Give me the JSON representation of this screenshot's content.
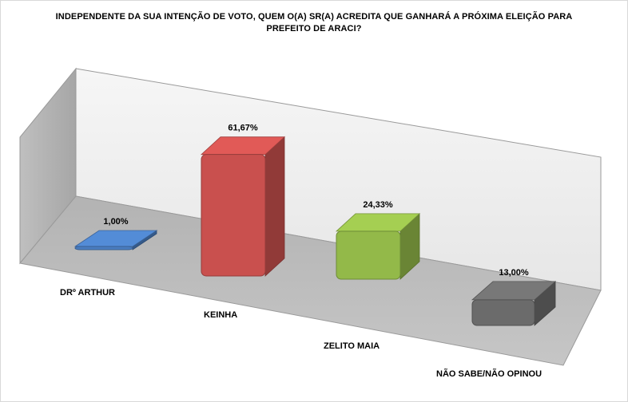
{
  "chart_data": {
    "type": "bar",
    "title": "INDEPENDENTE DA SUA INTENÇÃO DE VOTO, QUEM O(A) SR(A) ACREDITA QUE GANHARÁ A PRÓXIMA ELEIÇÃO PARA PREFEITO DE ARACI?",
    "categories": [
      "DRº ARTHUR",
      "KEINHA",
      "ZELITO MAIA",
      "NÃO SABE/NÃO OPINOU"
    ],
    "values": [
      1.0,
      61.67,
      24.33,
      13.0
    ],
    "data_labels": [
      "1,00%",
      "61,67%",
      "24,33%",
      "13,00%"
    ],
    "colors": [
      "#4a7dc0",
      "#c9504e",
      "#93b949",
      "#6b6b6b"
    ],
    "style": "3d-perspective",
    "grid": false,
    "legend": "none"
  }
}
